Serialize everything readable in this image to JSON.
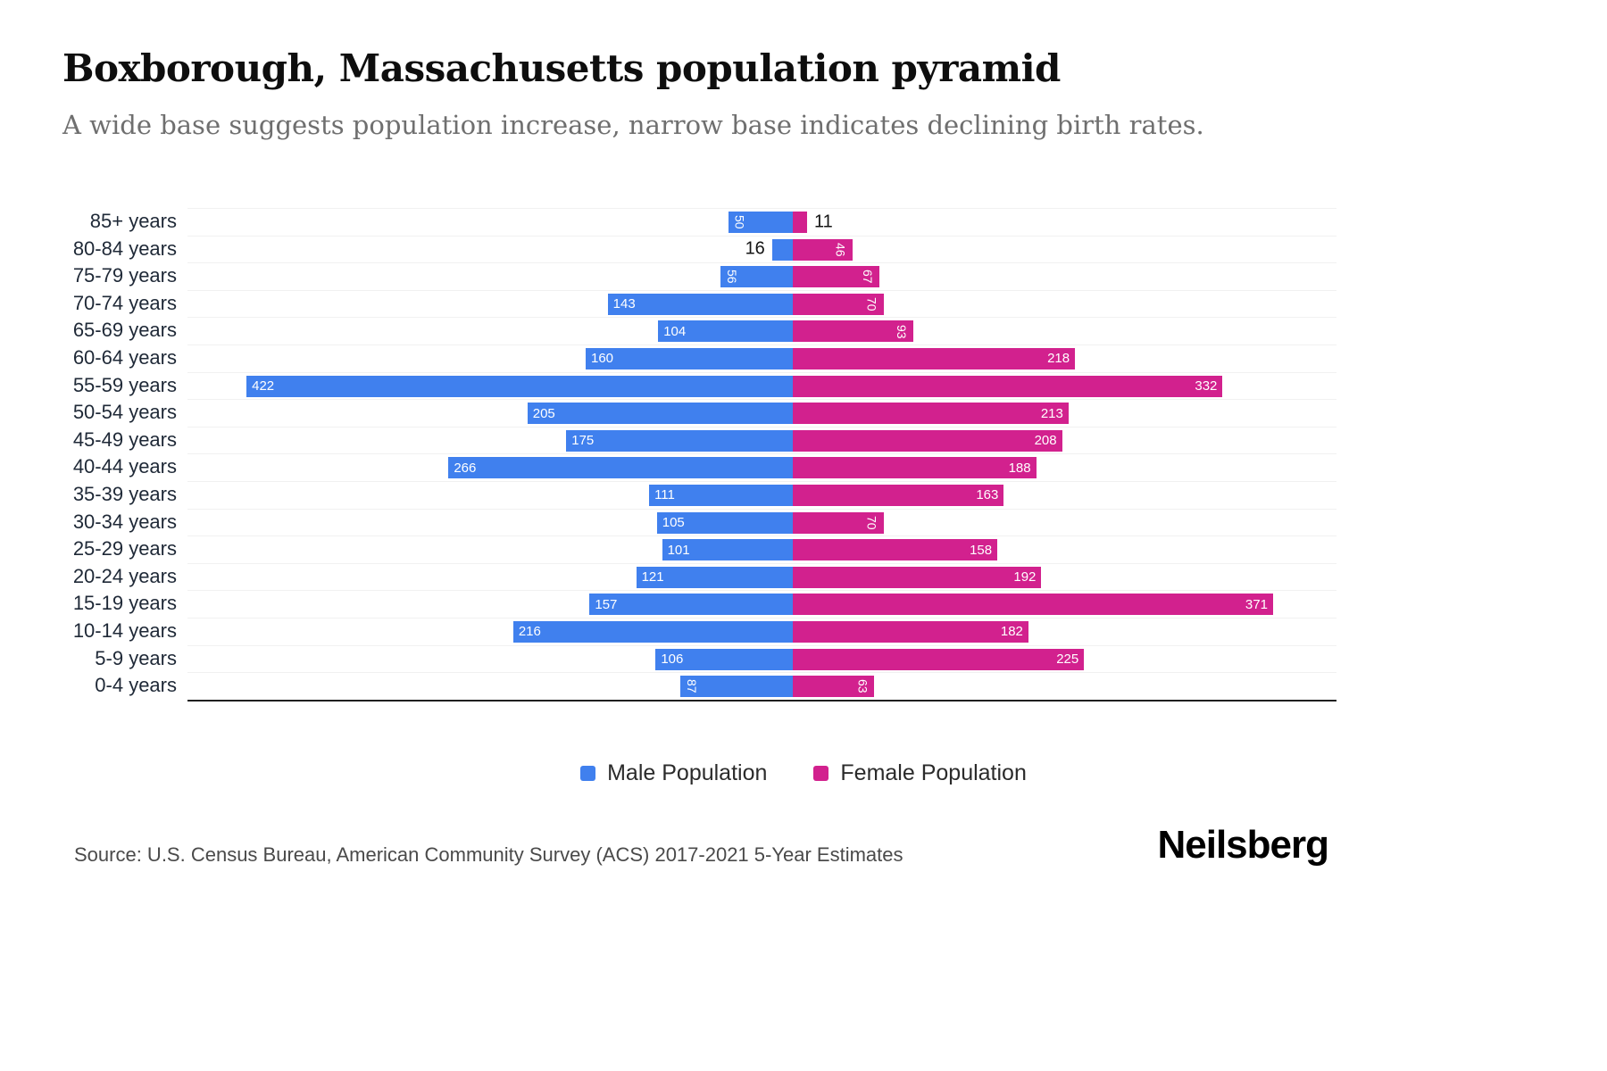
{
  "page": {
    "title": "Boxborough, Massachusetts population pyramid",
    "subtitle": "A wide base suggests population increase, narrow base indicates declining birth rates.",
    "source": "Source: U.S. Census Bureau, American Community Survey (ACS) 2017-2021 5-Year Estimates",
    "brand": "Neilsberg"
  },
  "legend": {
    "male_label": "Male Population",
    "female_label": "Female Population"
  },
  "chart_data": {
    "type": "bar",
    "variant": "population_pyramid",
    "title": "Boxborough, Massachusetts population pyramid",
    "categories": [
      "85+ years",
      "80-84 years",
      "75-79 years",
      "70-74 years",
      "65-69 years",
      "60-64 years",
      "55-59 years",
      "50-54 years",
      "45-49 years",
      "40-44 years",
      "35-39 years",
      "30-34 years",
      "25-29 years",
      "20-24 years",
      "15-19 years",
      "10-14 years",
      "5-9 years",
      "0-4 years"
    ],
    "series": [
      {
        "name": "Male Population",
        "side": "left",
        "color": "#4080ee",
        "values": [
          50,
          16,
          56,
          143,
          104,
          160,
          422,
          205,
          175,
          266,
          111,
          105,
          101,
          121,
          157,
          216,
          106,
          87
        ]
      },
      {
        "name": "Female Population",
        "side": "right",
        "color": "#d2218e",
        "values": [
          11,
          46,
          67,
          70,
          93,
          218,
          332,
          213,
          208,
          188,
          163,
          70,
          158,
          192,
          371,
          182,
          225,
          63
        ]
      }
    ],
    "x_axis": {
      "max_per_side": 440,
      "gridlines": "horizontal-row-separators",
      "baseline": true
    },
    "legend_position": "bottom",
    "inside_label_color": "#ffffff",
    "outside_label_color": "#141414"
  }
}
